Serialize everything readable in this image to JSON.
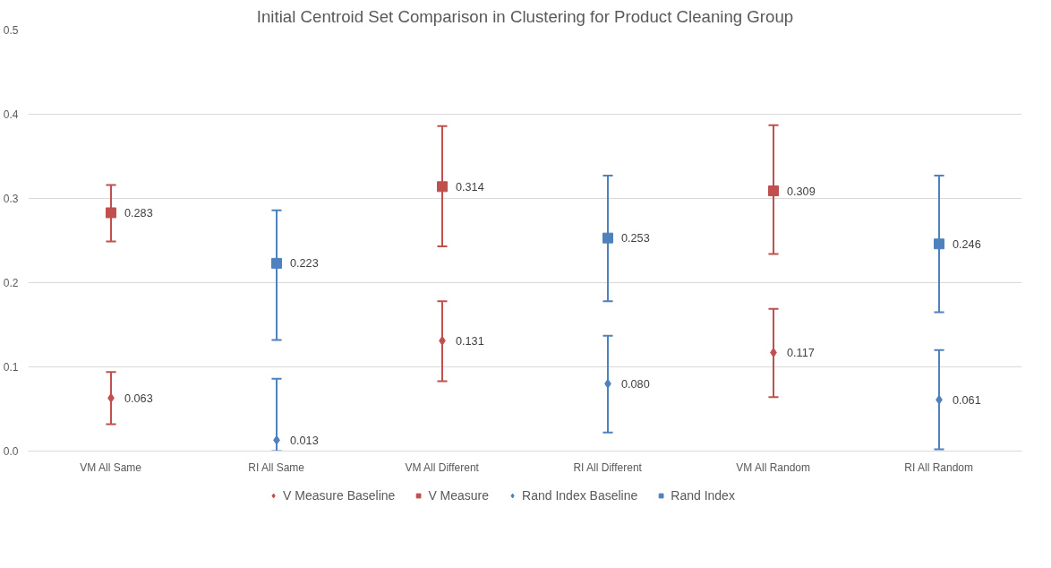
{
  "chart_data": {
    "type": "scatter",
    "title": "Initial Centroid Set Comparison in Clustering for Product Cleaning Group",
    "categories": [
      "VM All Same",
      "RI All Same",
      "VM All Different",
      "RI All Different",
      "VM All Random",
      "RI All Random"
    ],
    "series": [
      {
        "name": "V Measure Baseline",
        "color": "#c0504d",
        "marker": "diamond",
        "values": [
          0.063,
          null,
          0.131,
          null,
          0.117,
          null
        ],
        "errors": [
          [
            0.032,
            0.094
          ],
          null,
          [
            0.083,
            0.178
          ],
          null,
          [
            0.064,
            0.169
          ],
          null
        ],
        "value_labels": [
          "0.063",
          null,
          "0.131",
          null,
          "0.117",
          null
        ]
      },
      {
        "name": "V Measure",
        "color": "#c0504d",
        "marker": "square",
        "values": [
          0.283,
          null,
          0.314,
          null,
          0.309,
          null
        ],
        "errors": [
          [
            0.249,
            0.316
          ],
          null,
          [
            0.243,
            0.386
          ],
          null,
          [
            0.234,
            0.387
          ],
          null
        ],
        "value_labels": [
          "0.283",
          null,
          "0.314",
          null,
          "0.309",
          null
        ]
      },
      {
        "name": "Rand Index Baseline",
        "color": "#4f81bd",
        "marker": "diamond",
        "values": [
          null,
          0.013,
          null,
          0.08,
          null,
          0.061
        ],
        "errors": [
          null,
          [
            0.0,
            0.086
          ],
          null,
          [
            0.022,
            0.137
          ],
          null,
          [
            0.002,
            0.12
          ]
        ],
        "value_labels": [
          null,
          "0.013",
          null,
          "0.080",
          null,
          "0.061"
        ]
      },
      {
        "name": "Rand Index",
        "color": "#4f81bd",
        "marker": "square",
        "values": [
          null,
          0.223,
          null,
          0.253,
          null,
          0.246
        ],
        "errors": [
          null,
          [
            0.132,
            0.286
          ],
          null,
          [
            0.178,
            0.327
          ],
          null,
          [
            0.165,
            0.327
          ]
        ],
        "value_labels": [
          null,
          "0.223",
          null,
          "0.253",
          null,
          "0.246"
        ]
      }
    ],
    "ylim": [
      0,
      0.5
    ],
    "yticks": [
      {
        "value": 0,
        "label": "0.0"
      },
      {
        "value": 0.1,
        "label": "0.1"
      },
      {
        "value": 0.2,
        "label": "0.2"
      },
      {
        "value": 0.3,
        "label": "0.3"
      },
      {
        "value": 0.4,
        "label": "0.4"
      },
      {
        "value": 0.5,
        "label": "0.5"
      }
    ],
    "grid": "y",
    "legend": "bottom"
  }
}
